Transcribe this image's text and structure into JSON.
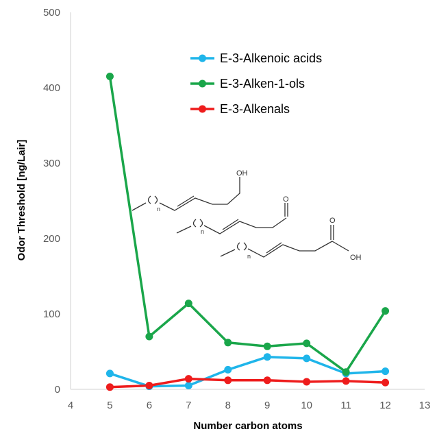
{
  "chart_data": {
    "type": "line",
    "xlabel": "Number carbon atoms",
    "ylabel": "Odor Threshold  [ng/Lair]",
    "xlim": [
      4,
      13
    ],
    "ylim": [
      0,
      500
    ],
    "x_ticks": [
      4,
      5,
      6,
      7,
      8,
      9,
      10,
      11,
      12,
      13
    ],
    "y_ticks": [
      0,
      100,
      200,
      300,
      400,
      500
    ],
    "grid": false,
    "legend_position": "top-right",
    "series": [
      {
        "name": "E-3-Alkenoic acids",
        "color": "#1fb5ea",
        "x": [
          5,
          6,
          7,
          8,
          9,
          10,
          11,
          12
        ],
        "y": [
          21,
          4,
          5,
          26,
          43,
          41,
          21,
          24
        ]
      },
      {
        "name": "E-3-Alken-1-ols",
        "color": "#1aa64a",
        "x": [
          5,
          6,
          7,
          8,
          9,
          10,
          11,
          12
        ],
        "y": [
          415,
          70,
          114,
          62,
          57,
          61,
          23,
          104
        ]
      },
      {
        "name": "E-3-Alkenals",
        "color": "#ee1c1c",
        "x": [
          5,
          6,
          7,
          8,
          9,
          10,
          11,
          12
        ],
        "y": [
          3,
          5,
          14,
          12,
          12,
          10,
          11,
          9
        ]
      }
    ]
  },
  "structures": {
    "alcohol": {
      "group_label": "OH",
      "n_label": "n"
    },
    "aldehyde": {
      "group_label": "O",
      "n_label": "n"
    },
    "acid": {
      "carbonyl_label": "O",
      "group_label": "OH",
      "n_label": "n"
    }
  }
}
